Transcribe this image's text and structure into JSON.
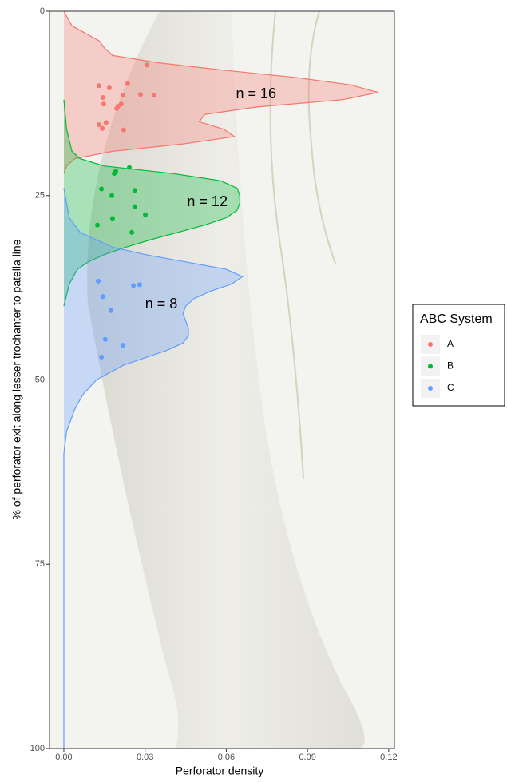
{
  "chart_data": {
    "type": "density",
    "x_label": "Perforator density",
    "y_label": "% of perforator exit along lesser trochanter to patella line",
    "xlim": [
      -0.0053,
      0.1221
    ],
    "xticks": [
      {
        "value": 0,
        "label": "0.00"
      },
      {
        "value": 0.03,
        "label": "0.03"
      },
      {
        "value": 0.06,
        "label": "0.06"
      },
      {
        "value": 0.09,
        "label": "0.09"
      },
      {
        "value": 0.12,
        "label": "0.12"
      }
    ],
    "ylim": [
      0,
      100
    ],
    "y_reversed": true,
    "yticks": [
      0,
      25,
      50,
      75,
      100
    ],
    "legend_title": "ABC System",
    "legend_position": "right",
    "series": [
      {
        "name": "A",
        "color": "#F8766D",
        "positions": [
          0,
          2,
          4,
          5,
          6,
          7,
          8,
          9,
          10,
          11,
          12,
          13,
          14,
          15,
          16,
          17,
          18,
          19,
          20,
          21,
          22
        ],
        "density": [
          0,
          0.003,
          0.013,
          0.015,
          0.018,
          0.035,
          0.059,
          0.086,
          0.106,
          0.116,
          0.103,
          0.071,
          0.052,
          0.05,
          0.059,
          0.063,
          0.044,
          0.018,
          0.004,
          0.001,
          0
        ],
        "points": {
          "x": [
            0.0307,
            0.013,
            0.0168,
            0.0236,
            0.0144,
            0.0218,
            0.0283,
            0.0333,
            0.0147,
            0.0212,
            0.02,
            0.0195,
            0.013,
            0.0156,
            0.0142,
            0.0221
          ],
          "y": [
            7.3,
            10.1,
            10.4,
            9.8,
            11.7,
            11.4,
            11.3,
            11.4,
            12.6,
            12.6,
            12.9,
            13.2,
            15.4,
            15.1,
            15.9,
            16.1
          ]
        },
        "annotation": {
          "text": "n = 16",
          "x": 0.071,
          "y": 11.3
        }
      },
      {
        "name": "B",
        "color": "#00BA38",
        "positions": [
          12,
          16,
          19,
          20,
          21,
          22,
          23,
          24,
          25,
          26,
          27,
          28,
          29,
          30,
          31,
          32,
          33,
          34,
          35,
          37,
          40
        ],
        "density": [
          0,
          0.001,
          0.003,
          0.006,
          0.015,
          0.04,
          0.058,
          0.064,
          0.065,
          0.065,
          0.064,
          0.06,
          0.052,
          0.042,
          0.032,
          0.023,
          0.015,
          0.009,
          0.005,
          0.002,
          0
        ],
        "points": {
          "x": [
            0.0242,
            0.0192,
            0.0186,
            0.019,
            0.0139,
            0.0262,
            0.0177,
            0.0262,
            0.0301,
            0.018,
            0.0124,
            0.0251
          ],
          "y": [
            21.2,
            21.7,
            22.0,
            21.9,
            24.1,
            24.3,
            25.0,
            26.5,
            27.6,
            28.1,
            29.0,
            30.0
          ]
        },
        "annotation": {
          "text": "n = 12",
          "x": 0.053,
          "y": 25.9
        }
      },
      {
        "name": "C",
        "color": "#619CFF",
        "positions": [
          24,
          28,
          30,
          32,
          33,
          34,
          35,
          36,
          37,
          38,
          39,
          40,
          41,
          42,
          43,
          44,
          45,
          46,
          47,
          48,
          50,
          52,
          54,
          57,
          60,
          100
        ],
        "density": [
          0,
          0.002,
          0.006,
          0.018,
          0.03,
          0.045,
          0.06,
          0.066,
          0.062,
          0.054,
          0.048,
          0.045,
          0.044,
          0.045,
          0.046,
          0.046,
          0.044,
          0.038,
          0.03,
          0.022,
          0.012,
          0.007,
          0.004,
          0.001,
          0,
          0
        ],
        "points": {
          "x": [
            0.0127,
            0.0257,
            0.028,
            0.0144,
            0.0174,
            0.0153,
            0.0218,
            0.0139
          ],
          "y": [
            36.6,
            37.2,
            37.1,
            38.7,
            40.6,
            44.5,
            45.3,
            46.9
          ]
        },
        "annotation": {
          "text": "n = 8",
          "x": 0.036,
          "y": 39.8
        }
      }
    ]
  }
}
